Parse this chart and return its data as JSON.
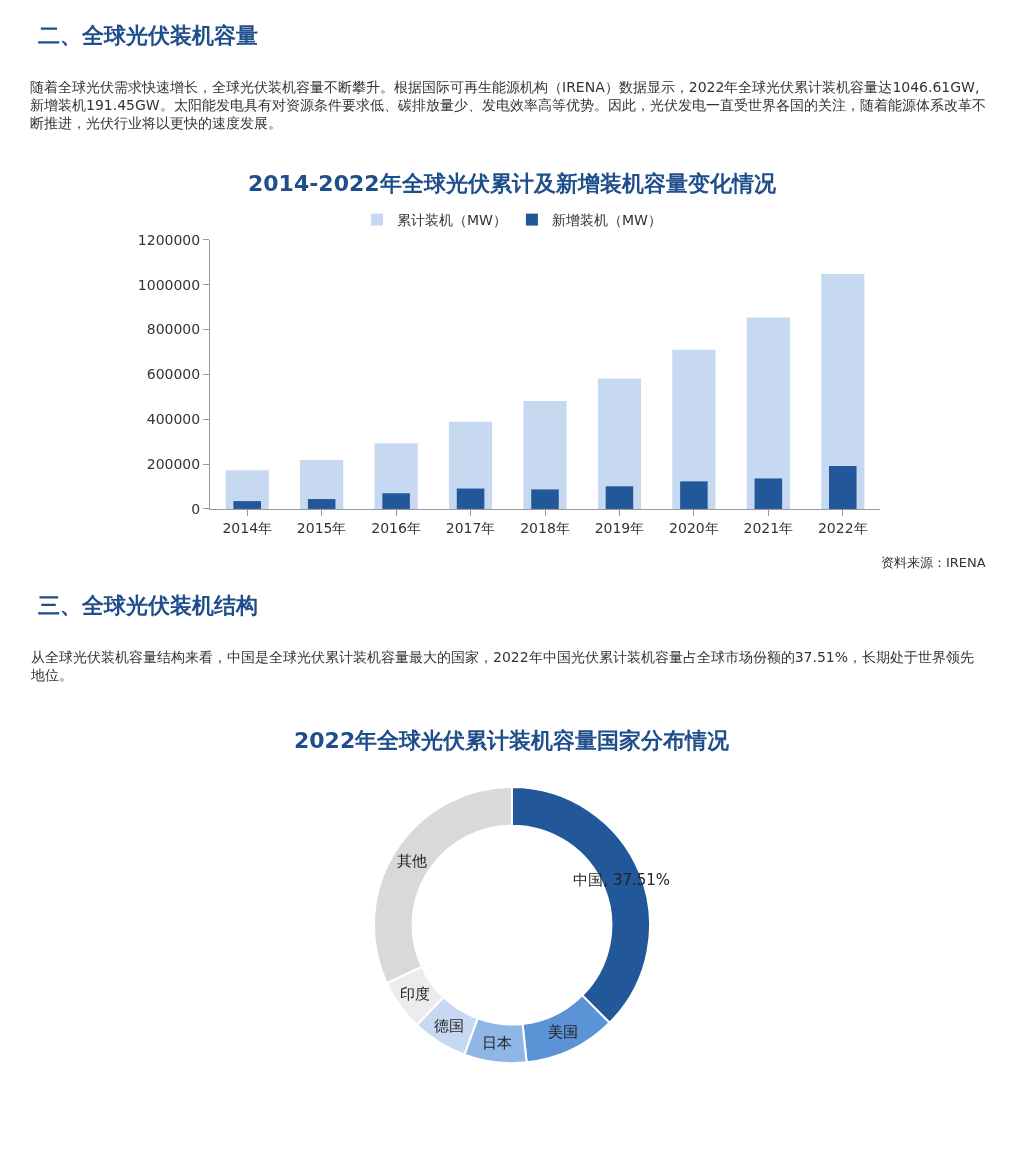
{
  "chart_data": [
    {
      "type": "bar",
      "title": "2014-2022年全球光伏累计及新增装机容量变化情况",
      "subtitle": "随着全球光伏需求快速增长，全球光伏装机容量不断攀升。根据国际可再生能源机构（IRENA）数据显示，2022年全球光伏累计装机容量达1046.61GW,新增装机191.45GW。太阳能发电具有对资源条件要求低、碳排放量少、发电效率高等优势。因此，光伏发电一直受世界各国的关注，随着能源体系改革不断推进，光伏行业将以更快的速度发展。",
      "annotations": [
        "二、全球光伏装机容量",
        "资料来源：IRENA"
      ],
      "categories": [
        "2014年",
        "2015年",
        "2016年",
        "2017年",
        "2018年",
        "2019年",
        "2020年",
        "2021年",
        "2022年"
      ],
      "series": [
        {
          "name": "累计装机（MW）",
          "color": "#c7d9f1",
          "values": [
            172000,
            218000,
            293000,
            389000,
            481000,
            582000,
            710000,
            853000,
            1047000
          ]
        },
        {
          "name": "新增装机（MW）",
          "color": "#22589a",
          "values": [
            35000,
            44000,
            70000,
            91000,
            87000,
            101000,
            123000,
            136000,
            191000
          ]
        }
      ],
      "ylim": [
        0,
        1200000
      ],
      "yticks": [
        0,
        200000,
        400000,
        600000,
        800000,
        1000000,
        1200000
      ],
      "legend": "top"
    },
    {
      "type": "donut",
      "title": "2022年全球光伏累计装机容量国家分布情况",
      "subtitle": "从全球光伏装机容量结构来看，中国是全球光伏累计装机容量最大的国家，2022年中国光伏累计装机容量占全球市场份额的37.51%，长期处于世界领先地位。",
      "annotations": [
        "三、全球光伏装机结构"
      ],
      "categories": [
        "中国",
        "美国",
        "日本",
        "德国",
        "印度",
        "其他"
      ],
      "values": [
        37.51,
        10.8,
        7.3,
        6.5,
        6.0,
        31.89
      ],
      "value_labels": [
        "37.51%",
        null,
        null,
        null,
        null,
        null
      ],
      "colors": [
        "#22589a",
        "#5b93d6",
        "#8fb6e6",
        "#c7d9f1",
        "#ececec",
        "#d9d9d9"
      ],
      "legend": false
    }
  ]
}
